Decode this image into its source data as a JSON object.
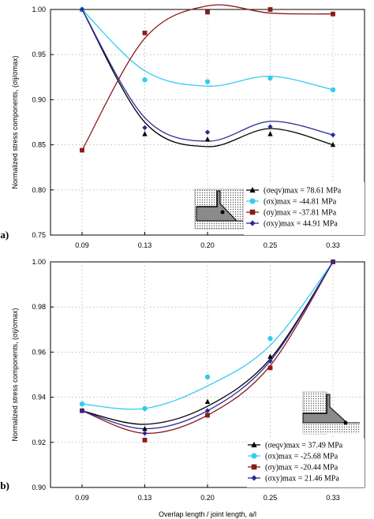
{
  "colors": {
    "eqv": "#000000",
    "x": "#33ccee",
    "y": "#8b1a1a",
    "xy": "#2a2a9a"
  },
  "chart_data": [
    {
      "type": "scatter",
      "panel_label": "(a)",
      "ylabel": "Normalized stress components, (σij/σmax)",
      "xlabel": "",
      "categories": [
        "0.09",
        "0.13",
        "0.20",
        "0.25",
        "0.33"
      ],
      "ylim": [
        0.75,
        1.0
      ],
      "yticks": [
        "0.75",
        "0.80",
        "0.85",
        "0.90",
        "0.95",
        "1.00"
      ],
      "grid": true,
      "legend_position": "bottom-right",
      "series": [
        {
          "name": "(σeqv)max = 78.61  MPa",
          "marker": "triangle",
          "color": "#000000",
          "values": [
            1.0,
            0.862,
            0.856,
            0.862,
            0.85
          ],
          "curve": [
            1.0,
            0.875,
            0.848,
            0.868,
            0.85
          ]
        },
        {
          "name": "(σx)max   = -44.81  MPa",
          "marker": "circle",
          "color": "#33ccee",
          "values": [
            1.0,
            0.922,
            0.92,
            0.924,
            0.911
          ],
          "curve": [
            1.0,
            0.932,
            0.915,
            0.926,
            0.911
          ]
        },
        {
          "name": "(σy)max   = -37.81  MPa",
          "marker": "square",
          "color": "#8b1a1a",
          "values": [
            0.844,
            0.974,
            0.997,
            1.0,
            0.995
          ],
          "curve": [
            0.844,
            0.968,
            1.004,
            0.996,
            0.995
          ]
        },
        {
          "name": "(σxy)max = 44.91  MPa",
          "marker": "diamond",
          "color": "#2a2a9a",
          "values": [
            1.0,
            0.869,
            0.864,
            0.87,
            0.861
          ],
          "curve": [
            1.0,
            0.88,
            0.854,
            0.876,
            0.861
          ]
        }
      ]
    },
    {
      "type": "scatter",
      "panel_label": "(b)",
      "ylabel": "Normalized stress components, (σij/σmax)",
      "xlabel": "Overlap length / joint length, a/l",
      "categories": [
        "0.09",
        "0.13",
        "0.20",
        "0.25",
        "0.33"
      ],
      "ylim": [
        0.9,
        1.0
      ],
      "yticks": [
        "0.90",
        "0.92",
        "0.94",
        "0.96",
        "0.98",
        "1.00"
      ],
      "grid": true,
      "legend_position": "bottom-right",
      "series": [
        {
          "name": "(σeqv)max = 37.49  MPa",
          "marker": "triangle",
          "color": "#000000",
          "values": [
            0.934,
            0.926,
            0.938,
            0.958,
            1.0
          ],
          "curve": [
            0.934,
            0.928,
            0.936,
            0.957,
            1.0
          ]
        },
        {
          "name": "(σx)max    = -25.68  MPa",
          "marker": "circle",
          "color": "#33ccee",
          "values": [
            0.937,
            0.935,
            0.949,
            0.966,
            1.0
          ],
          "curve": [
            0.937,
            0.935,
            0.945,
            0.963,
            1.0
          ]
        },
        {
          "name": "(σy)max    = -20.44  MPa",
          "marker": "square",
          "color": "#8b1a1a",
          "values": [
            0.934,
            0.921,
            0.932,
            0.953,
            1.0
          ],
          "curve": [
            0.934,
            0.924,
            0.932,
            0.954,
            1.0
          ]
        },
        {
          "name": "(σxy)max = 21.46  MPa",
          "marker": "diamond",
          "color": "#2a2a9a",
          "values": [
            0.934,
            0.924,
            0.934,
            0.956,
            1.0
          ],
          "curve": [
            0.934,
            0.926,
            0.934,
            0.956,
            1.0
          ]
        }
      ]
    }
  ]
}
